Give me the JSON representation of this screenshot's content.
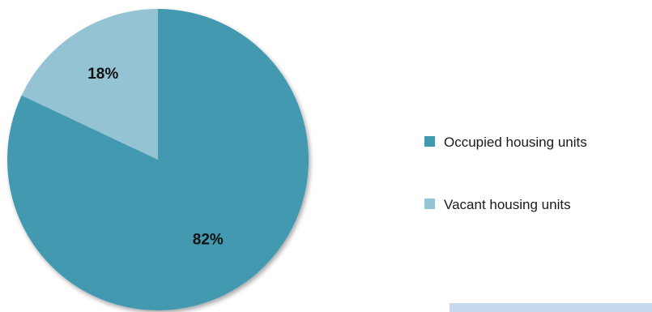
{
  "chart_data": {
    "type": "pie",
    "series": [
      {
        "name": "Occupied housing units",
        "value": 82,
        "label": "82%",
        "color": "#4399b0"
      },
      {
        "name": "Vacant housing units",
        "value": 18,
        "label": "18%",
        "color": "#94c3d4"
      }
    ],
    "legend_position": "right",
    "title": ""
  },
  "colors": {
    "occupied": "#4399b0",
    "vacant": "#94c3d4",
    "bottom_bar": "#c7d9ee"
  }
}
